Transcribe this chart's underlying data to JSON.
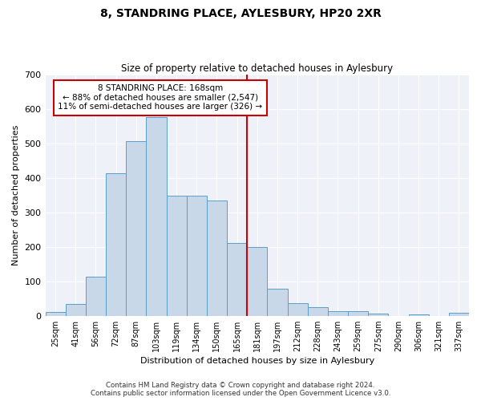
{
  "title": "8, STANDRING PLACE, AYLESBURY, HP20 2XR",
  "subtitle": "Size of property relative to detached houses in Aylesbury",
  "xlabel": "Distribution of detached houses by size in Aylesbury",
  "ylabel": "Number of detached properties",
  "bin_labels": [
    "25sqm",
    "41sqm",
    "56sqm",
    "72sqm",
    "87sqm",
    "103sqm",
    "119sqm",
    "134sqm",
    "150sqm",
    "165sqm",
    "181sqm",
    "197sqm",
    "212sqm",
    "228sqm",
    "243sqm",
    "259sqm",
    "275sqm",
    "290sqm",
    "306sqm",
    "321sqm",
    "337sqm"
  ],
  "bar_heights": [
    10,
    35,
    113,
    415,
    507,
    578,
    348,
    348,
    335,
    212,
    200,
    78,
    36,
    25,
    13,
    13,
    6,
    0,
    5,
    0,
    8
  ],
  "bar_color": "#c8d8e8",
  "bar_edge_color": "#5a9fc8",
  "property_label": "8 STANDRING PLACE: 168sqm",
  "pct_smaller": "88%",
  "pct_smaller_n": "2,547",
  "pct_larger": "11%",
  "pct_larger_n": "326",
  "vline_color": "#cc0000",
  "annotation_box_color": "#cc0000",
  "ylim": [
    0,
    700
  ],
  "yticks": [
    0,
    100,
    200,
    300,
    400,
    500,
    600,
    700
  ],
  "bg_color": "#eef2f8",
  "footer_line1": "Contains HM Land Registry data © Crown copyright and database right 2024.",
  "footer_line2": "Contains public sector information licensed under the Open Government Licence v3.0."
}
